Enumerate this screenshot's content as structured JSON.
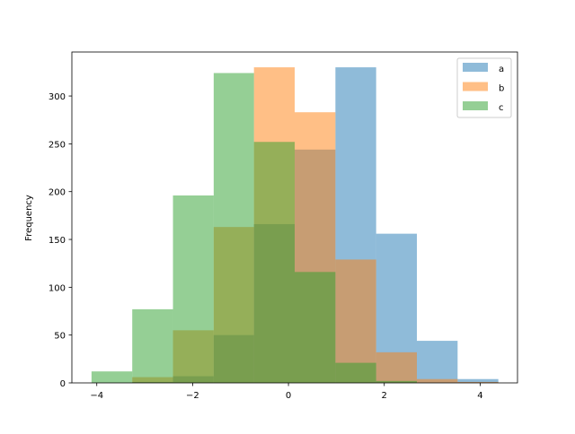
{
  "chart_data": {
    "type": "bar",
    "subtype": "overlaid histogram",
    "title": "",
    "xlabel": "",
    "ylabel": "Frequency",
    "xlim": [
      -4.52,
      4.78
    ],
    "ylim": [
      0,
      346
    ],
    "xticks": [
      -4,
      -2,
      0,
      2,
      4
    ],
    "yticks": [
      0,
      50,
      100,
      150,
      200,
      250,
      300
    ],
    "bin_edges": [
      -4.11,
      -3.26,
      -2.41,
      -1.56,
      -0.72,
      0.13,
      0.98,
      1.83,
      2.68,
      3.53,
      4.38
    ],
    "alpha": 0.5,
    "grid": false,
    "legend_position": "top-right",
    "series": [
      {
        "name": "a",
        "color": "#1f77b4",
        "values": [
          0,
          1,
          7,
          50,
          166,
          244,
          330,
          156,
          44,
          4
        ]
      },
      {
        "name": "b",
        "color": "#ff7f0e",
        "values": [
          0,
          6,
          55,
          163,
          330,
          283,
          129,
          32,
          4,
          1
        ]
      },
      {
        "name": "c",
        "color": "#2ca02c",
        "values": [
          12,
          77,
          196,
          324,
          252,
          116,
          21,
          2,
          0,
          0
        ]
      }
    ]
  }
}
